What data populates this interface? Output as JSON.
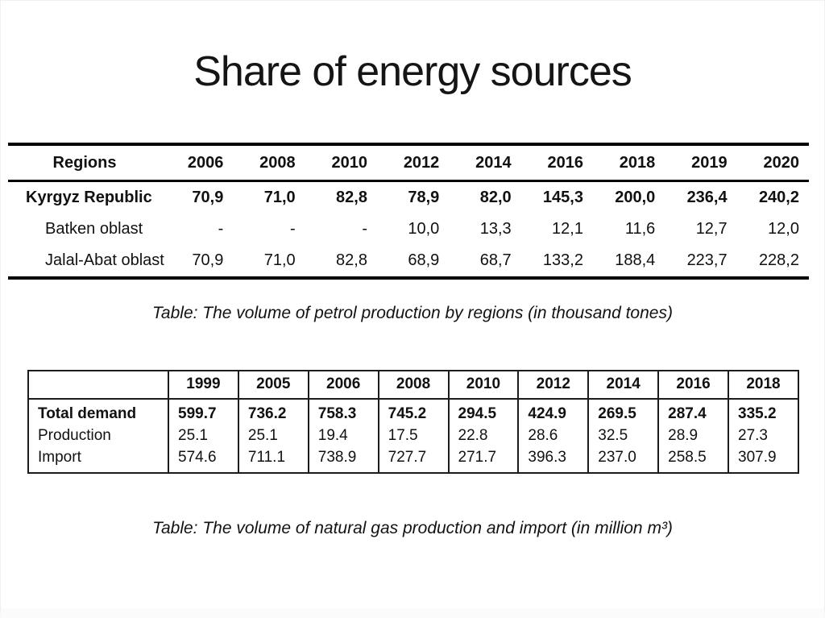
{
  "slide": {
    "title": "Share of energy sources",
    "petrol_table": {
      "columns": [
        "Regions",
        "2006",
        "2008",
        "2010",
        "2012",
        "2014",
        "2016",
        "2018",
        "2019",
        "2020"
      ],
      "rows": [
        {
          "label": "Kyrgyz Republic",
          "bold": true,
          "values": [
            "70,9",
            "71,0",
            "82,8",
            "78,9",
            "82,0",
            "145,3",
            "200,0",
            "236,4",
            "240,2"
          ]
        },
        {
          "label": "Batken oblast",
          "bold": false,
          "values": [
            "-",
            "-",
            "-",
            "10,0",
            "13,3",
            "12,1",
            "11,6",
            "12,7",
            "12,0"
          ]
        },
        {
          "label": "Jalal-Abat oblast",
          "bold": false,
          "values": [
            "70,9",
            "71,0",
            "82,8",
            "68,9",
            "68,7",
            "133,2",
            "188,4",
            "223,7",
            "228,2"
          ]
        }
      ],
      "caption": "Table: The volume of petrol production by regions (in thousand tones)"
    },
    "gas_table": {
      "columns": [
        "",
        "1999",
        "2005",
        "2006",
        "2008",
        "2010",
        "2012",
        "2014",
        "2016",
        "2018"
      ],
      "rows": [
        {
          "label": "Total demand",
          "bold": true,
          "values": [
            "599.7",
            "736.2",
            "758.3",
            "745.2",
            "294.5",
            "424.9",
            "269.5",
            "287.4",
            "335.2"
          ]
        },
        {
          "label": "Production",
          "bold": false,
          "values": [
            "25.1",
            "25.1",
            "19.4",
            "17.5",
            "22.8",
            "28.6",
            "32.5",
            "28.9",
            "27.3"
          ]
        },
        {
          "label": "Import",
          "bold": false,
          "values": [
            "574.6",
            "711.1",
            "738.9",
            "727.7",
            "271.7",
            "396.3",
            "237.0",
            "258.5",
            "307.9"
          ]
        }
      ],
      "caption": "Table: The volume of natural gas production and import (in million m³)"
    }
  }
}
